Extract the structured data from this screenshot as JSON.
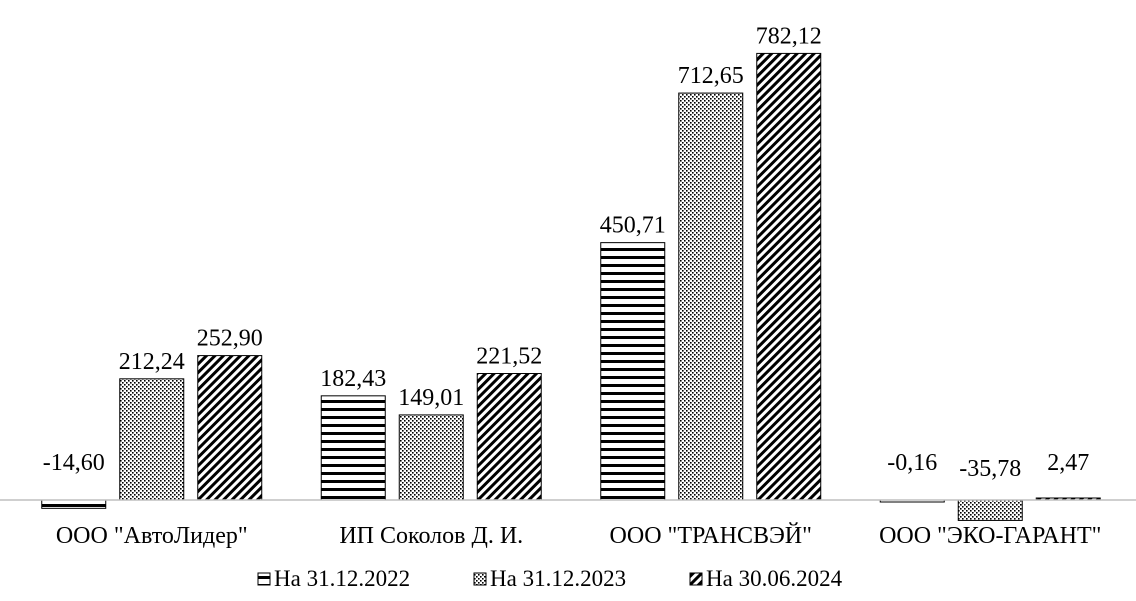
{
  "chart_data": {
    "type": "bar",
    "categories": [
      "ООО \"АвтоЛидер\"",
      "ИП Соколов Д. И.",
      "ООО \"ТРАНСВЭЙ\"",
      "ООО \"ЭКО-ГАРАНТ\""
    ],
    "series": [
      {
        "name": "На 31.12.2022",
        "pattern": "horizontal-lines",
        "values": [
          -14.6,
          182.43,
          450.71,
          -0.16
        ],
        "labels": [
          "-14,60",
          "182,43",
          "450,71",
          "-0,16"
        ]
      },
      {
        "name": "На 31.12.2023",
        "pattern": "dots",
        "values": [
          212.24,
          149.01,
          712.65,
          -35.78
        ],
        "labels": [
          "212,24",
          "149,01",
          "712,65",
          "-35,78"
        ]
      },
      {
        "name": "На 30.06.2024",
        "pattern": "diagonal-lines",
        "values": [
          252.9,
          221.52,
          782.12,
          2.47
        ],
        "labels": [
          "252,90",
          "221,52",
          "782,12",
          "2,47"
        ]
      }
    ],
    "title": "",
    "xlabel": "",
    "ylabel": "",
    "ylim": [
      -40,
      800
    ],
    "grid": false,
    "legend": "bottom",
    "colors": {
      "ink": "#000000",
      "axis": "#bfbfbf",
      "fill": "#ffffff"
    }
  }
}
